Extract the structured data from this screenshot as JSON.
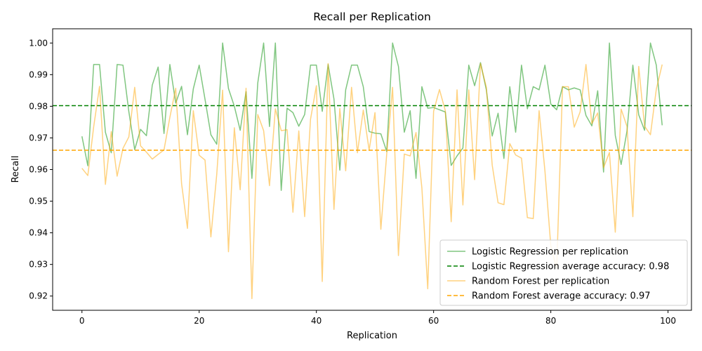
{
  "chart_data": {
    "type": "line",
    "title": "Recall per Replication",
    "xlabel": "Replication",
    "ylabel": "Recall",
    "xlim": [
      -5,
      104
    ],
    "ylim": [
      0.9155,
      1.0045
    ],
    "xticks": [
      0,
      20,
      40,
      60,
      80,
      100
    ],
    "xtick_labels": [
      "0",
      "20",
      "40",
      "60",
      "80",
      "100"
    ],
    "yticks": [
      0.92,
      0.93,
      0.94,
      0.95,
      0.96,
      0.97,
      0.98,
      0.99,
      1.0
    ],
    "ytick_labels": [
      "0.92",
      "0.93",
      "0.94",
      "0.95",
      "0.96",
      "0.97",
      "0.98",
      "0.99",
      "1.00"
    ],
    "legend_position": "lower-right",
    "series": [
      {
        "name": "Logistic Regression per replication",
        "kind": "line",
        "color": "#2ca02c",
        "opacity": 0.6,
        "values": [
          0.9705,
          0.9612,
          0.9932,
          0.9932,
          0.9718,
          0.9653,
          0.9932,
          0.993,
          0.9783,
          0.9663,
          0.9727,
          0.9707,
          0.9867,
          0.9924,
          0.9714,
          0.9932,
          0.981,
          0.9863,
          0.971,
          0.9855,
          0.993,
          0.9822,
          0.971,
          0.968,
          1.0,
          0.9856,
          0.98,
          0.9724,
          0.9846,
          0.9572,
          0.9874,
          1.0,
          0.9736,
          1.0,
          0.9534,
          0.9794,
          0.978,
          0.9737,
          0.9774,
          0.993,
          0.993,
          0.9784,
          0.9932,
          0.9823,
          0.9598,
          0.9852,
          0.993,
          0.993,
          0.9862,
          0.972,
          0.9715,
          0.9713,
          0.9657,
          1.0,
          0.9926,
          0.9718,
          0.9786,
          0.9572,
          0.9862,
          0.9794,
          0.9796,
          0.9789,
          0.9782,
          0.9613,
          0.9643,
          0.9668,
          0.993,
          0.9865,
          0.9938,
          0.9852,
          0.9706,
          0.9778,
          0.9635,
          0.9862,
          0.9718,
          0.993,
          0.9792,
          0.9862,
          0.9852,
          0.993,
          0.9807,
          0.9789,
          0.9862,
          0.9852,
          0.9858,
          0.9852,
          0.9771,
          0.9738,
          0.9849,
          0.9592,
          1.0,
          0.9708,
          0.9616,
          0.9722,
          0.993,
          0.9773,
          0.9724,
          1.0,
          0.993,
          0.974
        ]
      },
      {
        "name": "Logistic Regression average accuracy: 0.98",
        "kind": "hline",
        "color": "#008000",
        "value": 0.9802
      },
      {
        "name": "Random Forest per replication",
        "kind": "line",
        "color": "#ffa500",
        "opacity": 0.5,
        "values": [
          0.9604,
          0.9581,
          0.9735,
          0.9863,
          0.9553,
          0.972,
          0.9579,
          0.9667,
          0.9703,
          0.986,
          0.9675,
          0.9655,
          0.9633,
          0.9648,
          0.9662,
          0.9765,
          0.9857,
          0.9555,
          0.9414,
          0.9786,
          0.9645,
          0.963,
          0.9387,
          0.9585,
          0.9851,
          0.934,
          0.9732,
          0.9536,
          0.9857,
          0.9192,
          0.9774,
          0.9723,
          0.9549,
          0.9792,
          0.9723,
          0.9726,
          0.9465,
          0.9722,
          0.9451,
          0.9759,
          0.9865,
          0.9246,
          0.9935,
          0.9474,
          0.9793,
          0.9596,
          0.986,
          0.9653,
          0.9788,
          0.9661,
          0.978,
          0.9411,
          0.9649,
          0.986,
          0.9328,
          0.9649,
          0.9643,
          0.9717,
          0.9542,
          0.9223,
          0.9784,
          0.9853,
          0.9786,
          0.9435,
          0.9852,
          0.9488,
          0.9852,
          0.9568,
          0.9935,
          0.986,
          0.9614,
          0.9495,
          0.9489,
          0.9682,
          0.9646,
          0.9636,
          0.9448,
          0.9445,
          0.9786,
          0.9595,
          0.9359,
          0.9285,
          0.9862,
          0.9862,
          0.9734,
          0.9782,
          0.9932,
          0.9745,
          0.9779,
          0.9606,
          0.9654,
          0.9402,
          0.9791,
          0.9736,
          0.9451,
          0.9926,
          0.9737,
          0.971,
          0.9854,
          0.9932
        ]
      },
      {
        "name": "Random Forest average accuracy: 0.97",
        "kind": "hline",
        "color": "#ffa500",
        "value": 0.9661
      }
    ]
  }
}
